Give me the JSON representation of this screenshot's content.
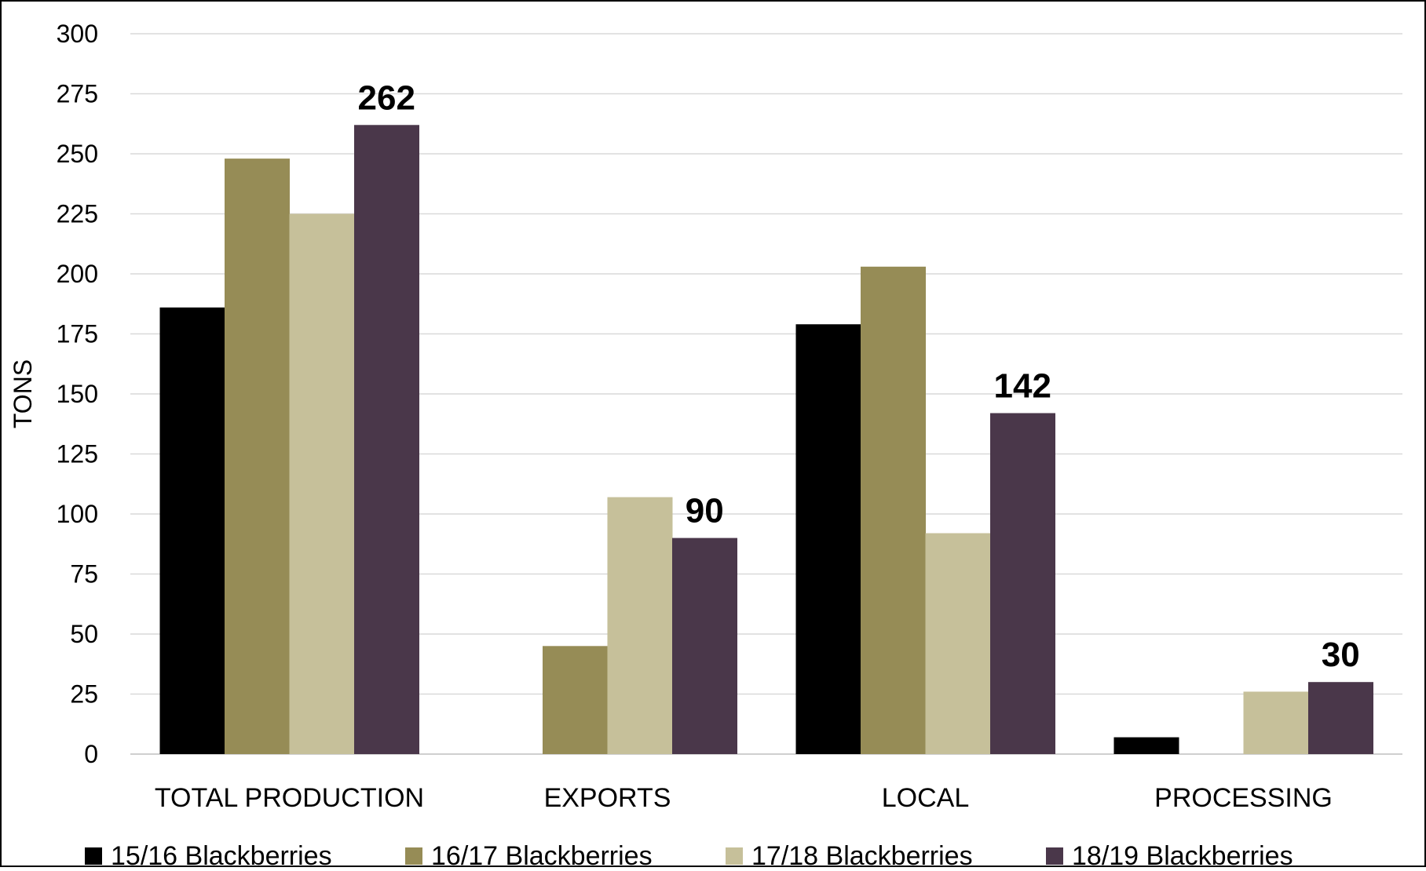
{
  "chart_data": {
    "type": "bar",
    "title": "",
    "xlabel": "",
    "ylabel": "TONS",
    "ylim": [
      0,
      300
    ],
    "yticks": [
      0,
      25,
      50,
      75,
      100,
      125,
      150,
      175,
      200,
      225,
      250,
      275,
      300
    ],
    "grid": true,
    "legend_position": "bottom",
    "categories": [
      "TOTAL PRODUCTION",
      "EXPORTS",
      "LOCAL",
      "PROCESSING"
    ],
    "series": [
      {
        "name": "15/16 Blackberries",
        "color": "#000000",
        "values": [
          186,
          0,
          179,
          7
        ]
      },
      {
        "name": "16/17 Blackberries",
        "color": "#968c56",
        "values": [
          248,
          45,
          203,
          0
        ]
      },
      {
        "name": "17/18 Blackberries",
        "color": "#c6c09a",
        "values": [
          225,
          107,
          92,
          26
        ]
      },
      {
        "name": "18/19 Blackberries",
        "color": "#4a374a",
        "values": [
          262,
          90,
          142,
          30
        ]
      }
    ],
    "data_labels": [
      {
        "series": 3,
        "category": 0,
        "text": "262"
      },
      {
        "series": 3,
        "category": 1,
        "text": "90"
      },
      {
        "series": 3,
        "category": 2,
        "text": "142"
      },
      {
        "series": 3,
        "category": 3,
        "text": "30"
      }
    ]
  }
}
